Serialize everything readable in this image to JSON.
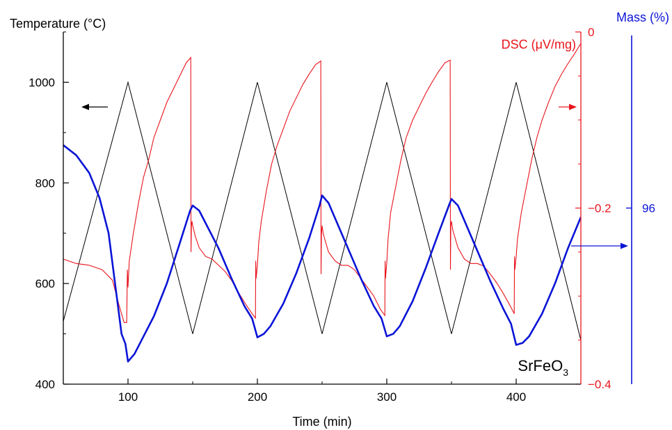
{
  "chart_data": {
    "type": "line",
    "title": "",
    "xlabel": "Time (min)",
    "ylabel_left": "Temperature (°C)",
    "ylabel_right1": "DSC (μV/mg)",
    "ylabel_right2": "Mass (%)",
    "annotation": {
      "main": "SrFeO",
      "sub": "3"
    },
    "xlim": [
      50,
      450
    ],
    "x_ticks": [
      100,
      200,
      300,
      400
    ],
    "y_left_lim": [
      400,
      1100
    ],
    "y_left_ticks": [
      400,
      600,
      800,
      1000
    ],
    "y_dsc_lim": [
      -0.4,
      0
    ],
    "y_dsc_ticks": [
      -0.4,
      -0.2,
      0
    ],
    "y_dsc_tick_labels": [
      "−0.4",
      "−0.2",
      "0"
    ],
    "y_mass_ticks": [
      96
    ],
    "y_mass_tick_labels": [
      "96"
    ],
    "y_mass_tick_pos": 0.5,
    "grid": false,
    "colors": {
      "temperature": "#000000",
      "dsc": "#e8141c",
      "mass": "#0a14d6"
    },
    "series": [
      {
        "axis": "left",
        "x": [
          50,
          100,
          150,
          200,
          250,
          300,
          350,
          400,
          450
        ],
        "values": [
          525,
          1000,
          500,
          1000,
          500,
          1000,
          500,
          1000,
          487
        ]
      },
      {
        "axis": "dsc",
        "x": [
          50,
          60,
          70,
          80,
          88,
          93,
          97,
          99,
          99.5,
          100,
          101,
          104,
          108,
          112,
          116,
          120,
          125,
          130,
          135,
          140,
          145,
          148.5,
          148.7,
          149,
          149.5,
          150,
          152,
          155,
          160,
          165,
          170,
          175,
          180,
          185,
          190,
          195,
          198.5,
          198.7,
          199,
          200,
          201,
          203,
          207,
          211,
          215,
          220,
          225,
          230,
          235,
          240,
          245,
          249,
          249.2,
          249.5,
          250,
          251,
          255,
          260,
          265,
          270,
          275,
          280,
          285,
          290,
          295,
          298.5,
          298.7,
          299,
          300,
          301,
          303,
          307,
          311,
          315,
          320,
          325,
          330,
          335,
          340,
          345,
          349,
          349.2,
          349.5,
          350,
          351,
          355,
          360,
          365,
          370,
          375,
          380,
          385,
          390,
          395,
          398.5,
          398.7,
          399,
          400,
          401,
          404,
          408,
          412,
          416,
          420,
          425,
          430,
          435,
          440,
          445,
          450
        ],
        "values": [
          -0.258,
          -0.263,
          -0.265,
          -0.27,
          -0.282,
          -0.31,
          -0.33,
          -0.33,
          -0.27,
          -0.29,
          -0.26,
          -0.23,
          -0.195,
          -0.165,
          -0.145,
          -0.12,
          -0.1,
          -0.08,
          -0.065,
          -0.05,
          -0.035,
          -0.029,
          -0.25,
          -0.22,
          -0.215,
          -0.22,
          -0.232,
          -0.245,
          -0.255,
          -0.258,
          -0.265,
          -0.272,
          -0.282,
          -0.295,
          -0.307,
          -0.318,
          -0.325,
          -0.26,
          -0.28,
          -0.265,
          -0.24,
          -0.215,
          -0.18,
          -0.15,
          -0.13,
          -0.11,
          -0.09,
          -0.075,
          -0.06,
          -0.048,
          -0.037,
          -0.033,
          -0.275,
          -0.23,
          -0.22,
          -0.23,
          -0.25,
          -0.26,
          -0.265,
          -0.265,
          -0.27,
          -0.28,
          -0.29,
          -0.3,
          -0.315,
          -0.322,
          -0.26,
          -0.28,
          -0.262,
          -0.235,
          -0.205,
          -0.175,
          -0.145,
          -0.12,
          -0.1,
          -0.085,
          -0.07,
          -0.057,
          -0.045,
          -0.035,
          -0.032,
          -0.27,
          -0.22,
          -0.215,
          -0.225,
          -0.245,
          -0.258,
          -0.263,
          -0.263,
          -0.266,
          -0.275,
          -0.285,
          -0.297,
          -0.31,
          -0.32,
          -0.255,
          -0.27,
          -0.255,
          -0.235,
          -0.205,
          -0.175,
          -0.145,
          -0.12,
          -0.1,
          -0.08,
          -0.062,
          -0.048,
          -0.036,
          -0.025,
          -0.013
        ]
      },
      {
        "axis": "mass",
        "x": [
          50,
          60,
          70,
          78,
          85,
          90,
          95,
          98,
          100,
          105,
          110,
          120,
          130,
          140,
          148,
          150,
          155,
          160,
          170,
          180,
          190,
          196,
          200,
          205,
          210,
          220,
          230,
          240,
          248,
          250,
          255,
          260,
          270,
          280,
          290,
          296,
          300,
          305,
          310,
          320,
          330,
          340,
          348,
          350,
          355,
          360,
          370,
          380,
          390,
          396,
          400,
          405,
          410,
          420,
          430,
          440,
          450
        ],
        "values": [
          875,
          855,
          820,
          770,
          700,
          600,
          500,
          480,
          445,
          460,
          485,
          535,
          600,
          680,
          745,
          755,
          745,
          720,
          670,
          610,
          555,
          530,
          493,
          500,
          515,
          560,
          620,
          690,
          755,
          775,
          760,
          730,
          670,
          610,
          555,
          530,
          495,
          500,
          515,
          565,
          630,
          700,
          755,
          768,
          755,
          725,
          665,
          605,
          550,
          520,
          478,
          482,
          495,
          540,
          600,
          670,
          732
        ]
      }
    ]
  }
}
